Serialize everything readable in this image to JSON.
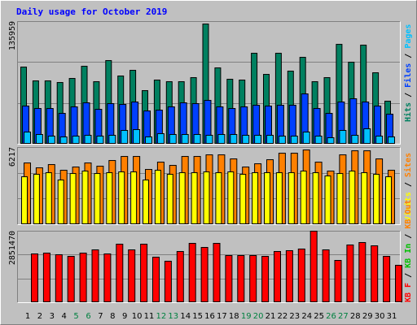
{
  "chart_data": [
    {
      "type": "bar",
      "title": "Daily usage for October 2019",
      "ylim": [
        0,
        135959
      ],
      "yticks": [
        135959
      ],
      "legend_separator": " / ",
      "series": [
        {
          "name": "Hits",
          "color": "#008060",
          "values": [
            85500,
            70200,
            70200,
            68400,
            72900,
            86400,
            69300,
            92700,
            75600,
            81900,
            59400,
            71100,
            69300,
            69300,
            73800,
            133200,
            84600,
            72000,
            71100,
            100800,
            77400,
            100800,
            81000,
            96300,
            69300,
            73800,
            110700,
            90900,
            109800,
            79200,
            47700
          ]
        },
        {
          "name": "Files",
          "color": "#0040ff",
          "values": [
            42300,
            39600,
            39600,
            34200,
            41400,
            45900,
            38700,
            45000,
            44100,
            46800,
            36900,
            37800,
            41400,
            45900,
            45000,
            48600,
            41400,
            39600,
            41400,
            43200,
            42300,
            43200,
            43200,
            55800,
            39600,
            34200,
            46800,
            50400,
            46800,
            42300,
            33300
          ]
        },
        {
          "name": "Pages",
          "color": "#00c0ff",
          "values": [
            13500,
            10800,
            9000,
            8100,
            9000,
            9900,
            9000,
            9900,
            15300,
            16200,
            8100,
            11700,
            10800,
            10800,
            10800,
            9900,
            10800,
            10800,
            9900,
            9900,
            9900,
            9000,
            9000,
            13500,
            9000,
            7200,
            15300,
            9900,
            17100,
            9000,
            8100
          ]
        }
      ]
    },
    {
      "type": "bar",
      "ylim": [
        0,
        6217
      ],
      "yticks": [
        6217
      ],
      "legend_separator": " / ",
      "series": [
        {
          "name": "Sites",
          "color": "#ff8000",
          "values": [
            4970,
            4578,
            4840,
            4382,
            4643,
            4970,
            4709,
            5167,
            5494,
            5494,
            4447,
            5036,
            4774,
            5494,
            5494,
            5624,
            5624,
            5297,
            4643,
            4905,
            5232,
            5755,
            5755,
            6017,
            5036,
            4316,
            5624,
            5951,
            5951,
            5297,
            4382
          ]
        },
        {
          "name": "Visits",
          "color": "#ffff00",
          "values": [
            3859,
            4055,
            4186,
            3597,
            4120,
            4316,
            4120,
            4186,
            4251,
            4251,
            3597,
            4382,
            4055,
            4186,
            4186,
            4251,
            4186,
            4251,
            4055,
            4186,
            4186,
            4186,
            4186,
            4316,
            4186,
            3924,
            4120,
            4316,
            4186,
            4055,
            3859
          ]
        }
      ]
    },
    {
      "type": "bar",
      "ylim": [
        0,
        2851470
      ],
      "yticks": [
        2851470
      ],
      "legend_separator": " / ",
      "series": [
        {
          "name": "KB F",
          "color": "#ff0000",
          "values": [
            1944000,
            1977000,
            1912000,
            1847000,
            1977000,
            2106000,
            1944000,
            2333000,
            2106000,
            2333000,
            1815000,
            1653000,
            2041000,
            2365000,
            2203000,
            2365000,
            1879000,
            1879000,
            1879000,
            1847000,
            2041000,
            2074000,
            2139000,
            2851470,
            2106000,
            1685000,
            2301000,
            2398000,
            2268000,
            1847000,
            1491000
          ]
        }
      ],
      "legend_extra": [
        {
          "name": "KB In",
          "color": "#00c000"
        },
        {
          "name": "KB Out",
          "color": "#ff8000"
        }
      ],
      "categories": [
        "1",
        "2",
        "3",
        "4",
        "5",
        "6",
        "7",
        "8",
        "9",
        "10",
        "11",
        "12",
        "13",
        "14",
        "15",
        "16",
        "17",
        "18",
        "19",
        "20",
        "21",
        "22",
        "23",
        "24",
        "25",
        "26",
        "27",
        "28",
        "29",
        "30",
        "31"
      ],
      "category_color": "#000000",
      "highlighted_categories": [
        "5",
        "6",
        "12",
        "13",
        "19",
        "20",
        "26",
        "27"
      ],
      "highlight_color": "#008040"
    }
  ]
}
